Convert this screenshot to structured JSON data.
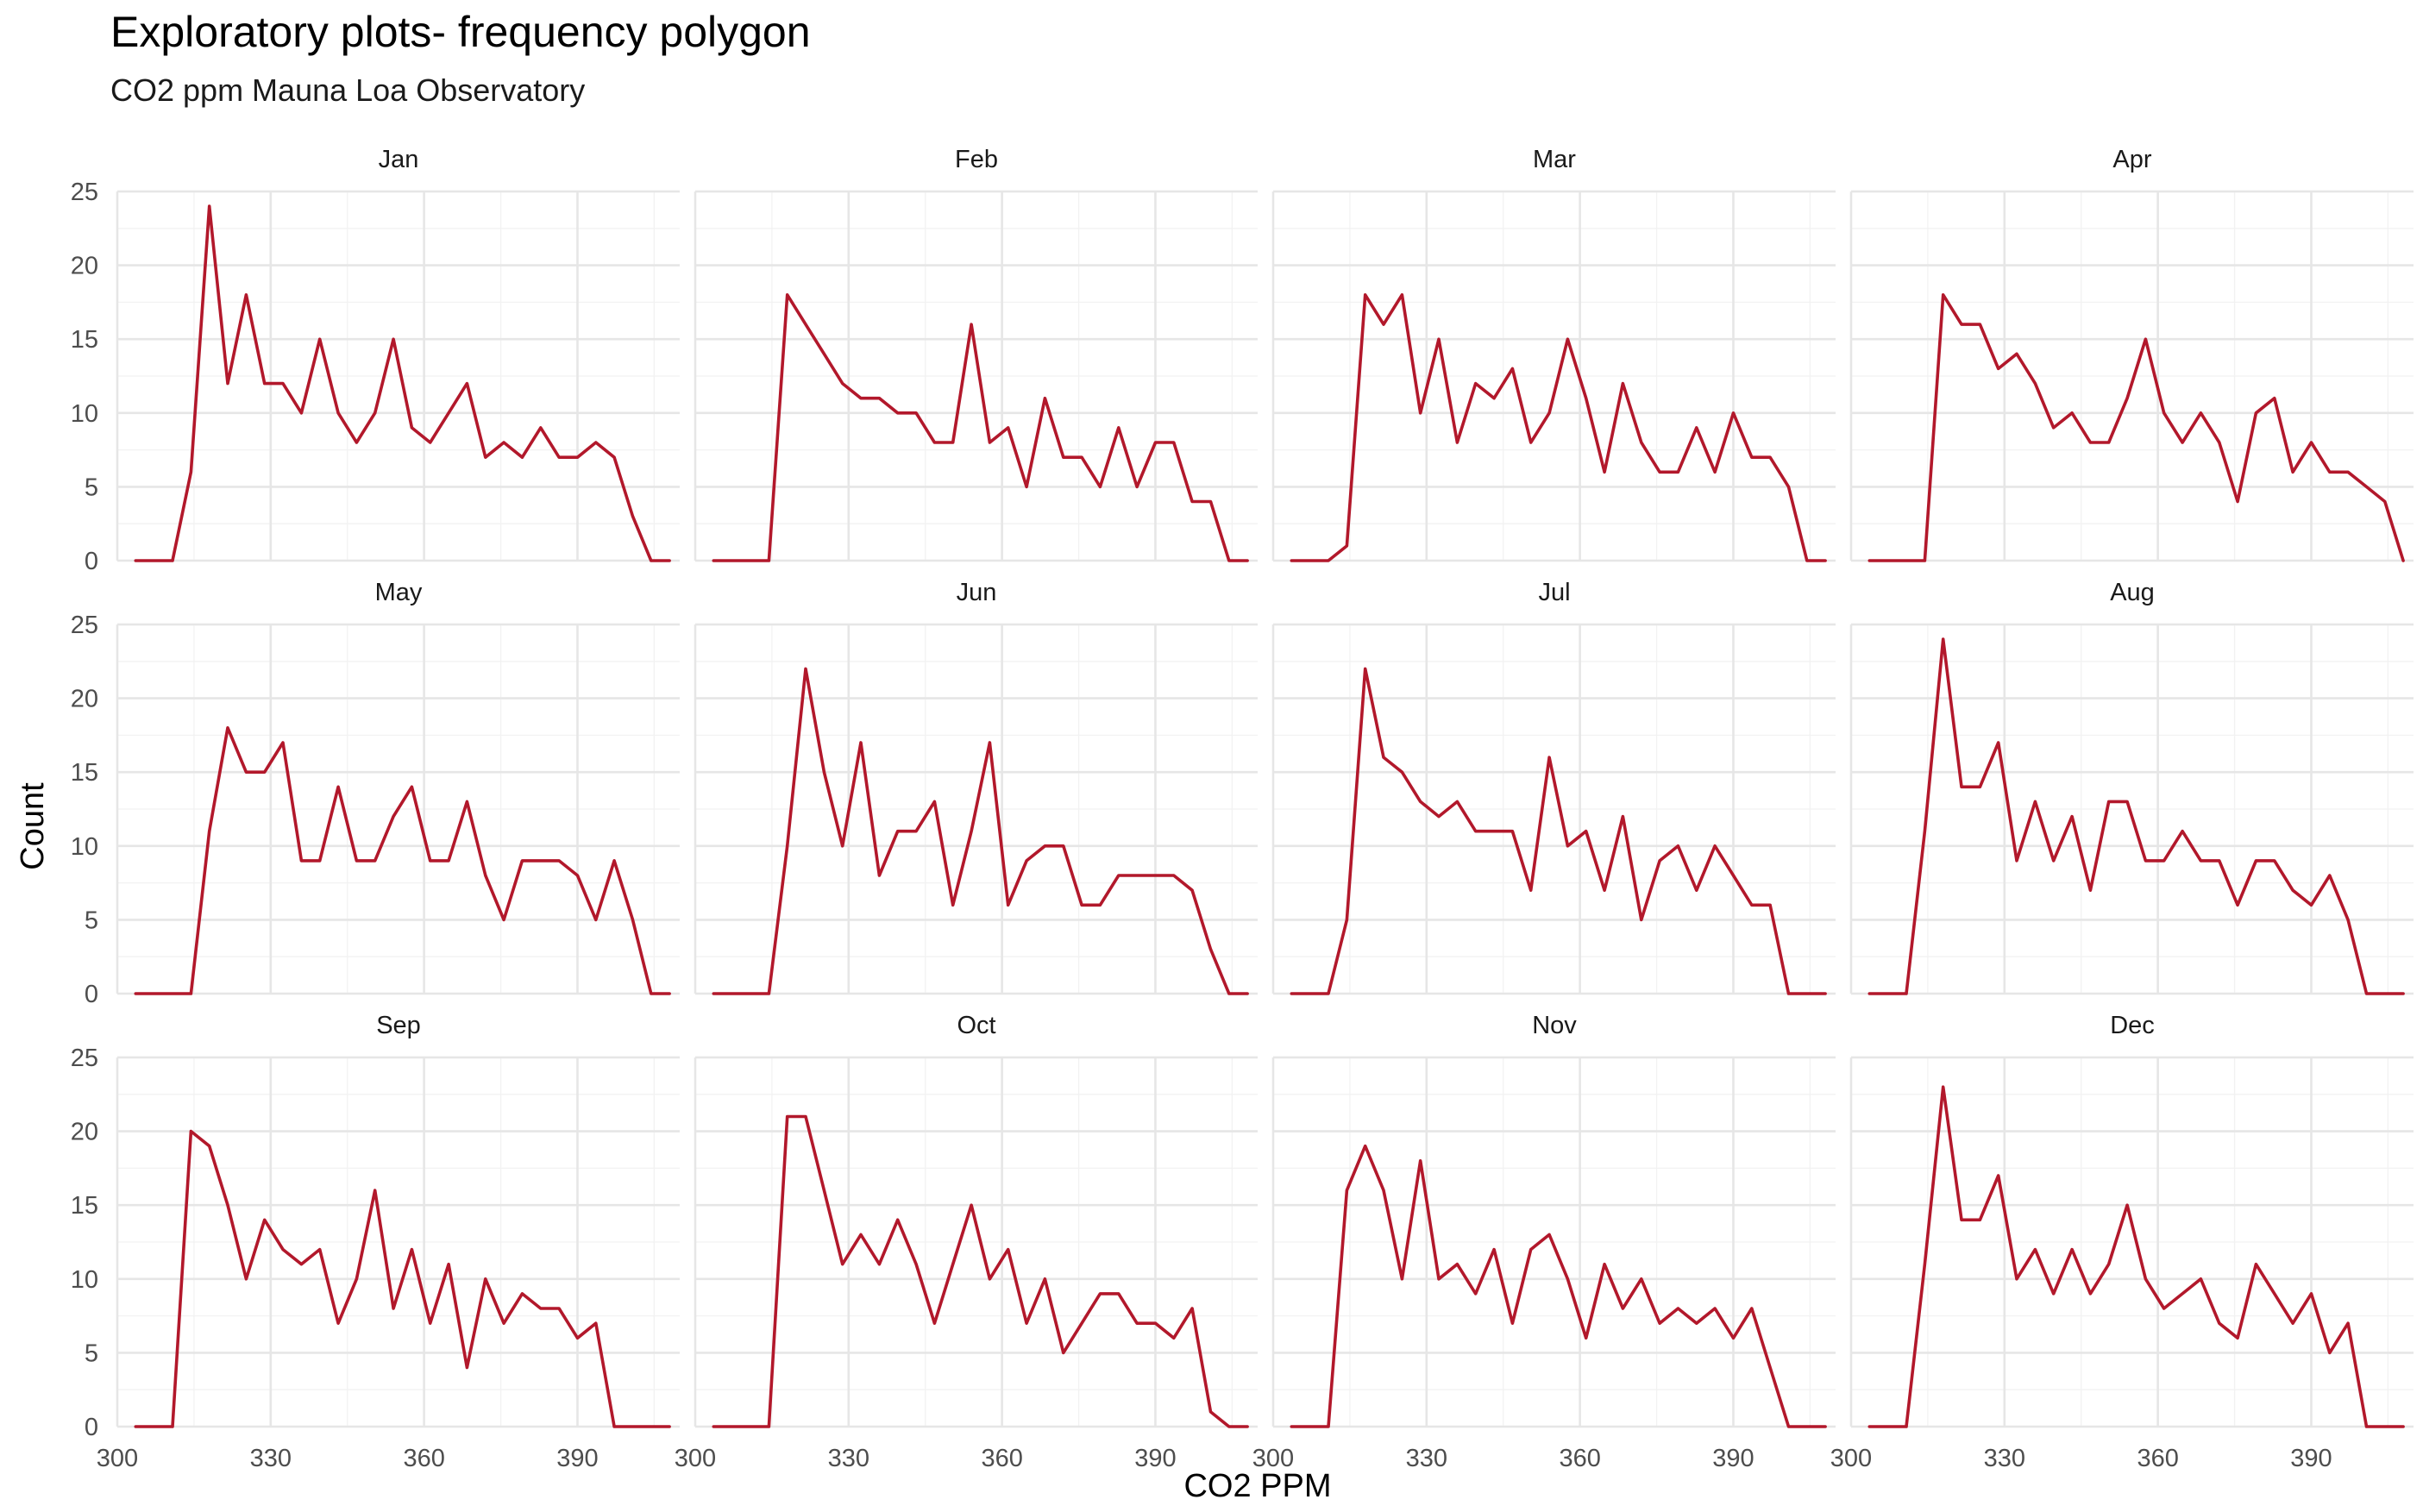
{
  "chart_data": {
    "type": "line",
    "title": "Exploratory plots- frequency polygon",
    "subtitle": "CO2 ppm Mauna Loa Observatory",
    "xlabel": "CO2 PPM",
    "ylabel": "Count",
    "xlim": [
      300,
      410
    ],
    "ylim": [
      0,
      25
    ],
    "x_ticks": [
      300,
      330,
      360,
      390
    ],
    "y_ticks": [
      0,
      5,
      10,
      15,
      20,
      25
    ],
    "grid": true,
    "line_color": "#B2182B",
    "x": [
      303.6,
      307.2,
      310.8,
      314.4,
      318.0,
      321.6,
      325.2,
      328.8,
      332.4,
      336.0,
      339.6,
      343.2,
      346.8,
      350.4,
      354.0,
      357.6,
      361.2,
      364.8,
      368.4,
      372.0,
      375.6,
      379.2,
      382.8,
      386.4,
      390.0,
      393.6,
      397.2,
      400.8,
      404.4,
      408.0
    ],
    "panels": [
      {
        "label": "Jan",
        "values": [
          0,
          0,
          0,
          6,
          24,
          12,
          18,
          12,
          12,
          10,
          15,
          10,
          8,
          10,
          15,
          9,
          8,
          10,
          12,
          7,
          8,
          7,
          9,
          7,
          7,
          8,
          7,
          3,
          0,
          0
        ]
      },
      {
        "label": "Feb",
        "values": [
          0,
          0,
          0,
          0,
          18,
          16,
          14,
          12,
          11,
          11,
          10,
          10,
          8,
          8,
          16,
          8,
          9,
          5,
          11,
          7,
          7,
          5,
          9,
          5,
          8,
          8,
          4,
          4,
          0,
          0
        ]
      },
      {
        "label": "Mar",
        "values": [
          0,
          0,
          0,
          1,
          18,
          16,
          18,
          10,
          15,
          8,
          12,
          11,
          13,
          8,
          10,
          15,
          11,
          6,
          12,
          8,
          6,
          6,
          9,
          6,
          10,
          7,
          7,
          5,
          0,
          0
        ]
      },
      {
        "label": "Apr",
        "values": [
          0,
          0,
          0,
          0,
          18,
          16,
          16,
          13,
          14,
          12,
          9,
          10,
          8,
          8,
          11,
          15,
          10,
          8,
          10,
          8,
          4,
          10,
          11,
          6,
          8,
          6,
          6,
          5,
          4,
          0
        ]
      },
      {
        "label": "May",
        "values": [
          0,
          0,
          0,
          0,
          11,
          18,
          15,
          15,
          17,
          9,
          9,
          14,
          9,
          9,
          12,
          14,
          9,
          9,
          13,
          8,
          5,
          9,
          9,
          9,
          8,
          5,
          9,
          5,
          0,
          0
        ]
      },
      {
        "label": "Jun",
        "values": [
          0,
          0,
          0,
          0,
          10,
          22,
          15,
          10,
          17,
          8,
          11,
          11,
          13,
          6,
          11,
          17,
          6,
          9,
          10,
          10,
          6,
          6,
          8,
          8,
          8,
          8,
          7,
          3,
          0,
          0
        ]
      },
      {
        "label": "Jul",
        "values": [
          0,
          0,
          0,
          5,
          22,
          16,
          15,
          13,
          12,
          13,
          11,
          11,
          11,
          7,
          16,
          10,
          11,
          7,
          12,
          5,
          9,
          10,
          7,
          10,
          8,
          6,
          6,
          0,
          0,
          0
        ]
      },
      {
        "label": "Aug",
        "values": [
          0,
          0,
          0,
          11,
          24,
          14,
          14,
          17,
          9,
          13,
          9,
          12,
          7,
          13,
          13,
          9,
          9,
          11,
          9,
          9,
          6,
          9,
          9,
          7,
          6,
          8,
          5,
          0,
          0,
          0
        ]
      },
      {
        "label": "Sep",
        "values": [
          0,
          0,
          0,
          20,
          19,
          15,
          10,
          14,
          12,
          11,
          12,
          7,
          10,
          16,
          8,
          12,
          7,
          11,
          4,
          10,
          7,
          9,
          8,
          8,
          6,
          7,
          0,
          0,
          0,
          0
        ]
      },
      {
        "label": "Oct",
        "values": [
          0,
          0,
          0,
          0,
          21,
          21,
          16,
          11,
          13,
          11,
          14,
          11,
          7,
          11,
          15,
          10,
          12,
          7,
          10,
          5,
          7,
          9,
          9,
          7,
          7,
          6,
          8,
          1,
          0,
          0
        ]
      },
      {
        "label": "Nov",
        "values": [
          0,
          0,
          0,
          16,
          19,
          16,
          10,
          18,
          10,
          11,
          9,
          12,
          7,
          12,
          13,
          10,
          6,
          11,
          8,
          10,
          7,
          8,
          7,
          8,
          6,
          8,
          4,
          0,
          0,
          0
        ]
      },
      {
        "label": "Dec",
        "values": [
          0,
          0,
          0,
          11,
          23,
          14,
          14,
          17,
          10,
          12,
          9,
          12,
          9,
          11,
          15,
          10,
          8,
          9,
          10,
          7,
          6,
          11,
          9,
          7,
          9,
          5,
          7,
          0,
          0,
          0
        ]
      }
    ]
  }
}
